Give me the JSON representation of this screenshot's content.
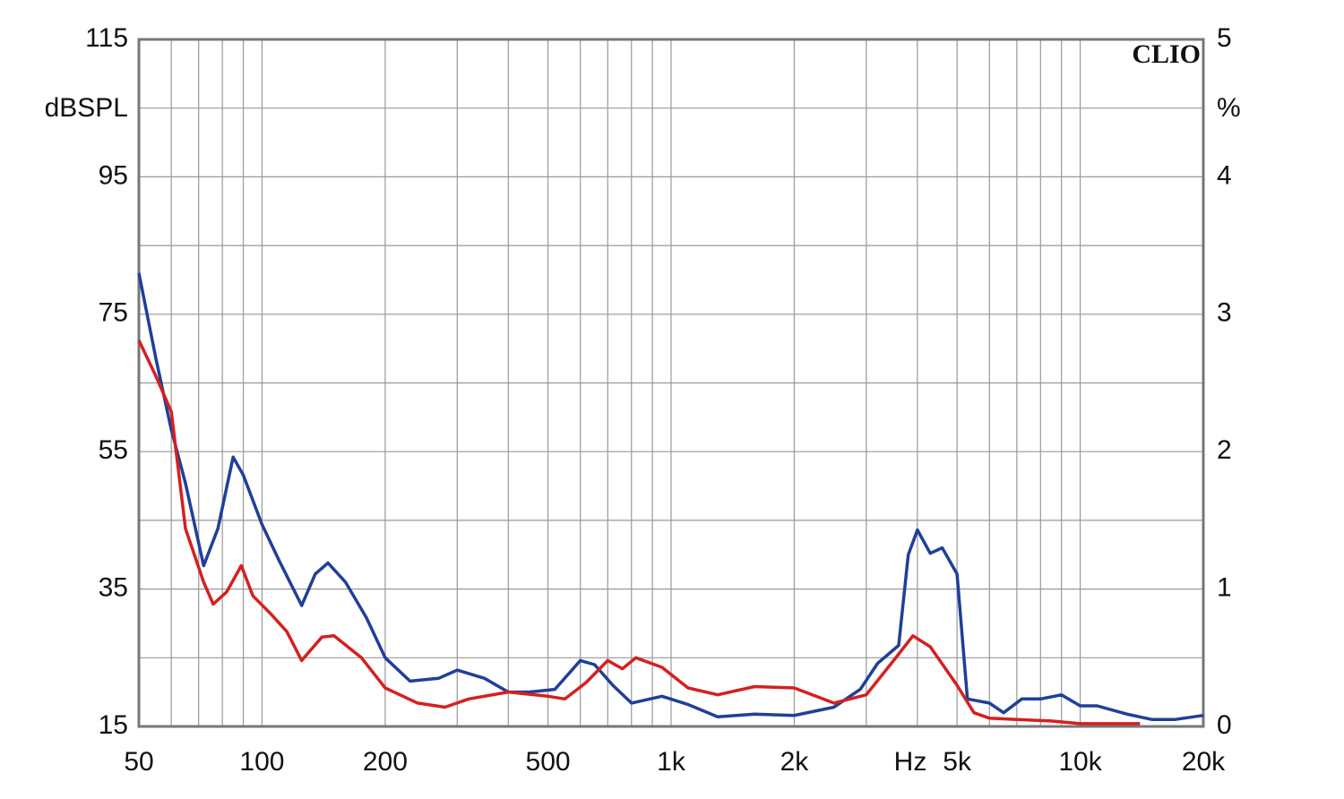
{
  "chart_data": {
    "type": "line",
    "brand": "CLIO",
    "ylabel": "dBSPL",
    "y2label": "%",
    "xlabel": "Hz",
    "xscale": "log",
    "grid": true,
    "xlim": [
      50,
      20000
    ],
    "xticks": [
      50,
      100,
      200,
      500,
      {
        "value": 1000,
        "label": "1k"
      },
      {
        "value": 2000,
        "label": "2k"
      },
      {
        "value": 5000,
        "label": "5k"
      },
      {
        "value": 10000,
        "label": "10k"
      },
      {
        "value": 20000,
        "label": "20k"
      }
    ],
    "x_minor_ticks": [
      60,
      70,
      80,
      90,
      300,
      400,
      600,
      700,
      800,
      900,
      3000,
      4000,
      6000,
      7000,
      8000,
      9000
    ],
    "ylim": [
      15,
      115
    ],
    "yticks": [
      15,
      35,
      55,
      75,
      95,
      115
    ],
    "y_minor_ticks": [
      25,
      45,
      65,
      85,
      105
    ],
    "y2lim": [
      0,
      5
    ],
    "y2ticks": [
      0,
      1,
      2,
      3,
      4,
      5
    ],
    "series": [
      {
        "color": "#1f3f99",
        "axis": "y2",
        "x": [
          50,
          55,
          60,
          65,
          72,
          78,
          85,
          90,
          100,
          110,
          125,
          135,
          145,
          160,
          180,
          200,
          230,
          270,
          300,
          350,
          400,
          450,
          520,
          600,
          650,
          720,
          800,
          950,
          1100,
          1300,
          1600,
          2000,
          2500,
          2900,
          3200,
          3600,
          3800,
          4000,
          4300,
          4600,
          5000,
          5300,
          6000,
          6500,
          7200,
          8000,
          9000,
          10000,
          11000,
          13000,
          15000,
          17000,
          20000
        ],
        "values": [
          3.3,
          2.68,
          2.16,
          1.77,
          1.17,
          1.44,
          1.96,
          1.83,
          1.47,
          1.21,
          0.88,
          1.11,
          1.19,
          1.05,
          0.79,
          0.5,
          0.33,
          0.35,
          0.41,
          0.35,
          0.25,
          0.25,
          0.27,
          0.48,
          0.45,
          0.3,
          0.17,
          0.22,
          0.16,
          0.07,
          0.09,
          0.08,
          0.14,
          0.27,
          0.46,
          0.59,
          1.25,
          1.43,
          1.26,
          1.3,
          1.11,
          0.2,
          0.17,
          0.1,
          0.2,
          0.2,
          0.23,
          0.15,
          0.15,
          0.09,
          0.05,
          0.05,
          0.08
        ]
      },
      {
        "color": "#d42020",
        "axis": "y2",
        "x": [
          50,
          55,
          60,
          65,
          72,
          76,
          82,
          89,
          95,
          105,
          115,
          125,
          140,
          150,
          175,
          200,
          240,
          280,
          320,
          400,
          500,
          550,
          620,
          700,
          760,
          820,
          950,
          1100,
          1300,
          1600,
          2000,
          2500,
          3000,
          3500,
          3900,
          4300,
          5000,
          5500,
          6000,
          7000,
          8500,
          10000,
          14000
        ],
        "values": [
          2.81,
          2.55,
          2.29,
          1.44,
          1.05,
          0.89,
          0.98,
          1.17,
          0.95,
          0.82,
          0.69,
          0.48,
          0.65,
          0.66,
          0.5,
          0.28,
          0.17,
          0.14,
          0.2,
          0.25,
          0.22,
          0.2,
          0.32,
          0.48,
          0.42,
          0.5,
          0.43,
          0.28,
          0.23,
          0.29,
          0.28,
          0.17,
          0.23,
          0.48,
          0.66,
          0.58,
          0.3,
          0.1,
          0.06,
          0.05,
          0.04,
          0.02,
          0.02
        ]
      }
    ]
  }
}
